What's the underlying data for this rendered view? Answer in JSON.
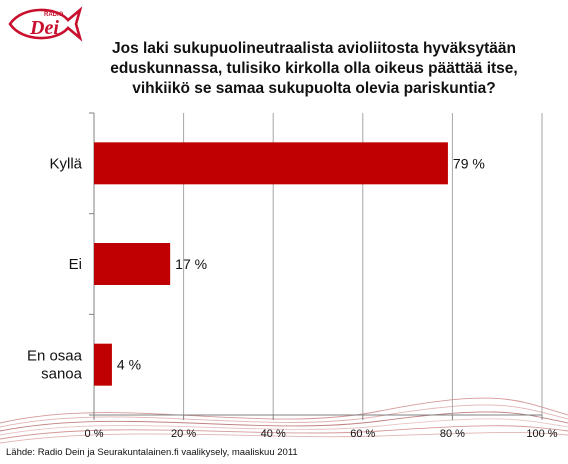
{
  "brand": {
    "logo_text": "Dei",
    "logo_small": "RADIO",
    "color": "#c8102e"
  },
  "chart_data": {
    "type": "bar",
    "orientation": "horizontal",
    "title": "Jos laki sukupuolineutraalista avioliitosta hyväksytään eduskunnassa, tulisiko kirkolla olla oikeus päättää itse, vihkiikö se samaa sukupuolta olevia pariskuntia?",
    "categories": [
      [
        "Kyllä"
      ],
      [
        "Ei"
      ],
      [
        "En osaa",
        "sanoa"
      ]
    ],
    "values": [
      79,
      17,
      4
    ],
    "value_labels": [
      "79 %",
      "17 %",
      "4 %"
    ],
    "xlim": [
      0,
      100
    ],
    "xticks": [
      0,
      20,
      40,
      60,
      80,
      100
    ],
    "xtick_labels": [
      "0 %",
      "20 %",
      "40 %",
      "60 %",
      "80 %",
      "100 %"
    ],
    "bar_color": "#c00000",
    "grid": true,
    "xlabel": "",
    "ylabel": ""
  },
  "source": "Lähde:  Radio Dein ja  Seurakuntalainen.fi vaalikysely, maaliskuu 2011"
}
